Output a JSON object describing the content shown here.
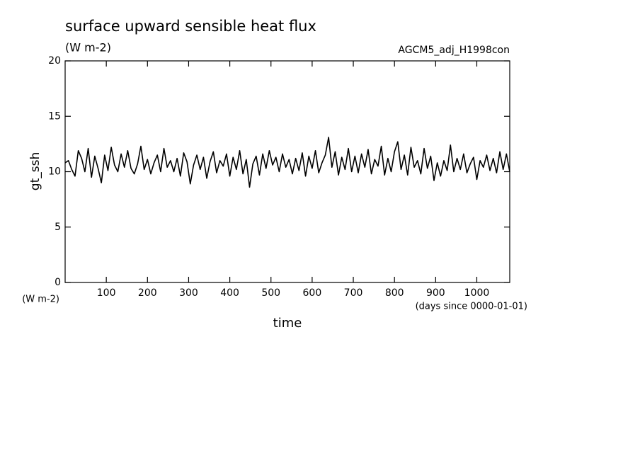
{
  "chart_data": {
    "type": "line",
    "title": "surface upward sensible heat flux",
    "subtitle": "(W m-2)",
    "annotation": "AGCM5_adj_H1998con",
    "y_label": "gt_ssh",
    "y_unit": "(W m-2)",
    "x_label": "time",
    "x_unit": "(days since 0000-01-01)",
    "xlim": [
      0,
      1080
    ],
    "ylim": [
      0,
      20
    ],
    "xticks": [
      100,
      200,
      300,
      400,
      500,
      600,
      700,
      800,
      900,
      1000
    ],
    "yticks": [
      0,
      5,
      10,
      15,
      20
    ],
    "grid": false,
    "x": [
      0,
      8,
      16,
      24,
      32,
      40,
      48,
      56,
      64,
      72,
      80,
      88,
      96,
      104,
      112,
      120,
      128,
      136,
      144,
      152,
      160,
      168,
      176,
      184,
      192,
      200,
      208,
      216,
      224,
      232,
      240,
      248,
      256,
      264,
      272,
      280,
      288,
      296,
      304,
      312,
      320,
      328,
      336,
      344,
      352,
      360,
      368,
      376,
      384,
      392,
      400,
      408,
      416,
      424,
      432,
      440,
      448,
      456,
      464,
      472,
      480,
      488,
      496,
      504,
      512,
      520,
      528,
      536,
      544,
      552,
      560,
      568,
      576,
      584,
      592,
      600,
      608,
      616,
      624,
      632,
      640,
      648,
      656,
      664,
      672,
      680,
      688,
      696,
      704,
      712,
      720,
      728,
      736,
      744,
      752,
      760,
      768,
      776,
      784,
      792,
      800,
      808,
      816,
      824,
      832,
      840,
      848,
      856,
      864,
      872,
      880,
      888,
      896,
      904,
      912,
      920,
      928,
      936,
      944,
      952,
      960,
      968,
      976,
      984,
      992,
      1000,
      1008,
      1016,
      1024,
      1032,
      1040,
      1048,
      1056,
      1064,
      1072,
      1080
    ],
    "series": [
      {
        "color": "#000000",
        "values": [
          10.8,
          11.0,
          10.2,
          9.6,
          11.9,
          11.2,
          10.0,
          12.1,
          9.5,
          11.4,
          10.3,
          9.0,
          11.5,
          10.1,
          12.2,
          10.6,
          10.0,
          11.6,
          10.4,
          11.9,
          10.3,
          9.8,
          10.7,
          12.3,
          10.2,
          11.1,
          9.8,
          10.8,
          11.5,
          10.0,
          12.1,
          10.4,
          11.0,
          10.0,
          11.2,
          9.6,
          11.7,
          10.9,
          8.9,
          10.6,
          11.5,
          10.2,
          11.3,
          9.4,
          10.9,
          11.8,
          9.9,
          11.0,
          10.5,
          11.6,
          9.6,
          11.3,
          10.2,
          11.9,
          9.8,
          11.1,
          8.6,
          10.7,
          11.4,
          9.7,
          11.6,
          10.3,
          11.9,
          10.6,
          11.3,
          10.0,
          11.6,
          10.4,
          11.1,
          9.8,
          11.2,
          10.1,
          11.7,
          9.6,
          11.4,
          10.3,
          11.9,
          9.9,
          10.8,
          11.5,
          13.1,
          10.4,
          11.8,
          9.7,
          11.3,
          10.2,
          12.1,
          10.0,
          11.4,
          9.9,
          11.6,
          10.4,
          12.0,
          9.8,
          11.1,
          10.5,
          12.3,
          9.7,
          11.2,
          10.0,
          11.8,
          12.7,
          10.2,
          11.5,
          9.7,
          12.2,
          10.4,
          11.0,
          9.8,
          12.1,
          10.3,
          11.4,
          9.2,
          10.8,
          9.6,
          11.0,
          10.1,
          12.4,
          10.0,
          11.2,
          10.2,
          11.6,
          9.9,
          10.7,
          11.3,
          9.3,
          11.0,
          10.4,
          11.5,
          10.1,
          11.2,
          9.9,
          11.8,
          10.2,
          11.6,
          10.0
        ]
      }
    ]
  }
}
